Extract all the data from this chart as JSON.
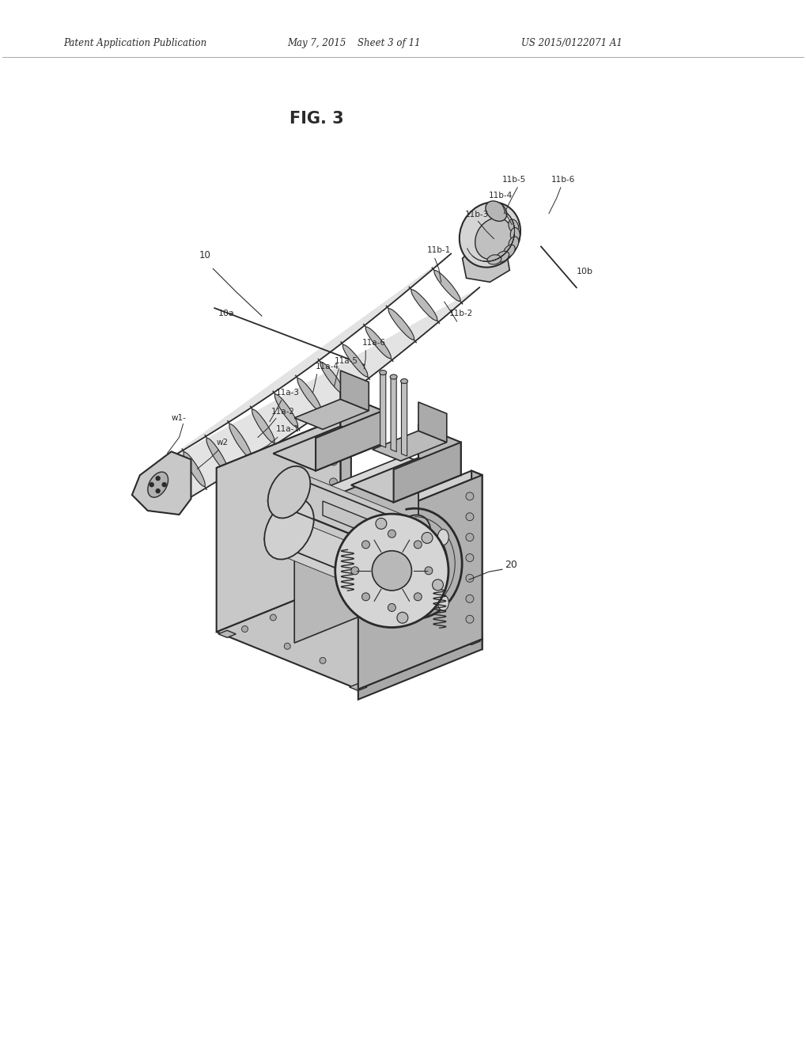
{
  "background_color": "#ffffff",
  "fig_width": 10.2,
  "fig_height": 13.2,
  "dpi": 100,
  "header_text": "Patent Application Publication",
  "header_date": "May 7, 2015",
  "header_sheet": "Sheet 3 of 11",
  "header_patent": "US 2015/0122071 A1",
  "fig_label": "FIG. 3",
  "line_color": "#2a2a2a",
  "text_color": "#2a2a2a",
  "gray_light": "#e8e8e8",
  "gray_mid": "#c8c8c8",
  "gray_dark": "#aaaaaa",
  "top_drawing": {
    "arm_label": "10",
    "arm_start_label": "10a",
    "arm_end_label": "10b",
    "segment_labels_a": [
      "11a-1",
      "11a-2",
      "11a-3",
      "11a-4",
      "11a-5",
      "11a-6"
    ],
    "segment_labels_b": [
      "11b-1",
      "11b-2",
      "11b-3",
      "11b-4",
      "11b-5",
      "11b-6"
    ],
    "wire_labels": [
      "w1",
      "w2"
    ]
  },
  "bottom_drawing": {
    "assembly_label": "20"
  }
}
